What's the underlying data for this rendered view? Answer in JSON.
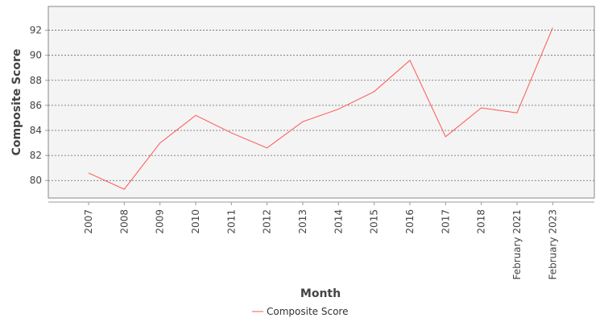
{
  "chart_data": {
    "type": "line",
    "categories": [
      "2007",
      "2008",
      "2009",
      "2010",
      "2011",
      "2012",
      "2013",
      "2014",
      "2015",
      "2016",
      "2017",
      "2018",
      "February 2021",
      "February 2023"
    ],
    "series": [
      {
        "name": "Composite Score",
        "values": [
          80.6,
          79.3,
          83.0,
          85.2,
          83.8,
          82.6,
          84.7,
          85.7,
          87.1,
          89.6,
          83.5,
          85.8,
          85.4,
          92.2
        ],
        "color": "#ff5555"
      }
    ],
    "xlabel": "Month",
    "ylabel": "Composite Score",
    "ylim": [
      78.6,
      93.9
    ],
    "yticks": [
      "80",
      "82",
      "84",
      "86",
      "88",
      "90",
      "92"
    ],
    "grid": "horizontal-dashed",
    "legend": "bottom-center",
    "plot_background": "#f4f4f4"
  }
}
